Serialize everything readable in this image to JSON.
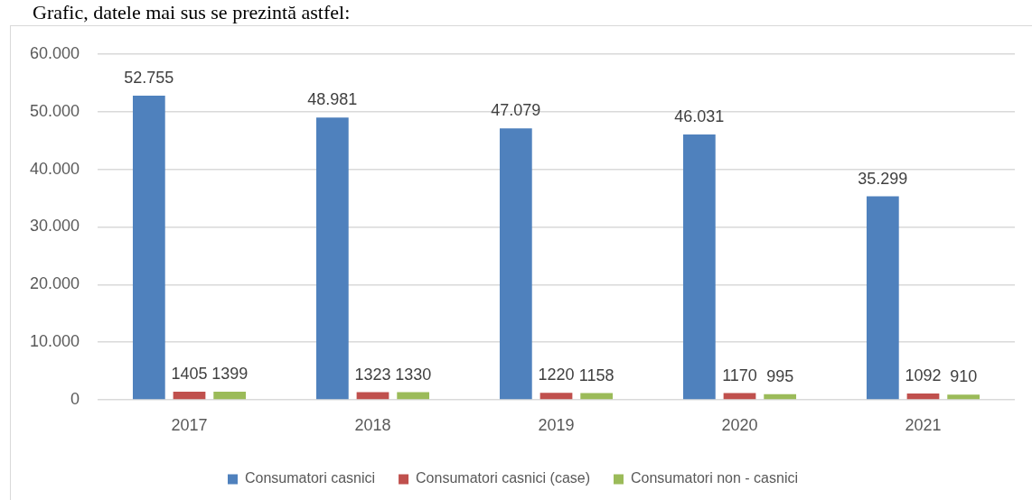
{
  "chart_data": {
    "type": "bar",
    "title": "Grafic, datele mai sus se prezintă astfel:",
    "categories": [
      "2017",
      "2018",
      "2019",
      "2020",
      "2021"
    ],
    "series": [
      {
        "name": "Consumatori casnici",
        "color": "#4f81bd",
        "values": [
          52755,
          48981,
          47079,
          46031,
          35299
        ],
        "value_labels": [
          "52.755",
          "48.981",
          "47.079",
          "46.031",
          "35.299"
        ]
      },
      {
        "name": "Consumatori casnici (case)",
        "color": "#c0504d",
        "values": [
          1405,
          1323,
          1220,
          1170,
          1092
        ],
        "value_labels": [
          "1405",
          "1323",
          "1220",
          "1170",
          "1092"
        ]
      },
      {
        "name": "Consumatori non - casnici",
        "color": "#9bbb59",
        "values": [
          1399,
          1330,
          1158,
          995,
          910
        ],
        "value_labels": [
          "1399",
          "1330",
          "1158",
          "995",
          "910"
        ]
      }
    ],
    "ylim": [
      0,
      60000
    ],
    "yticks": [
      0,
      {
        "value": 10000,
        "label": "10.000"
      },
      {
        "value": 20000,
        "label": "20.000"
      },
      {
        "value": 30000,
        "label": "30.000"
      },
      {
        "value": 40000,
        "label": "40.000"
      },
      {
        "value": 50000,
        "label": "50.000"
      },
      {
        "value": 60000,
        "label": "60.000"
      }
    ],
    "grid": "y",
    "legend": "bottom"
  }
}
